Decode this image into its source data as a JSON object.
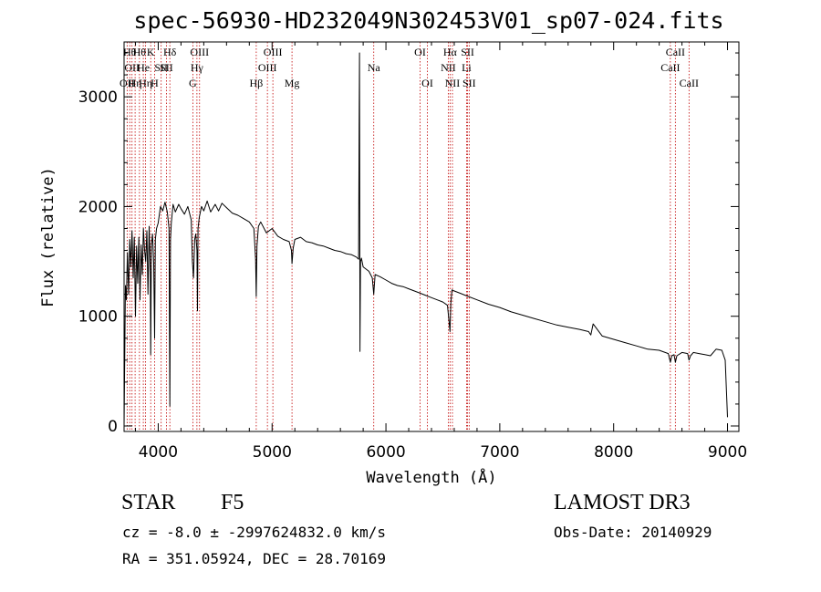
{
  "title": "spec-56930-HD232049N302453V01_sp07-024.fits",
  "info": {
    "object_type": "STAR",
    "spectral_class": "F5",
    "survey": "LAMOST DR3",
    "velocity": "cz = -8.0 ± -2997624832.0 km/s",
    "obs_date": "Obs-Date: 20140929",
    "coords": "RA = 351.05924, DEC =  28.70169"
  },
  "chart_data": {
    "type": "line",
    "title": "spec-56930-HD232049N302453V01_sp07-024.fits",
    "xlabel": "Wavelength (Å)",
    "ylabel": "Flux (relative)",
    "xlim": [
      3700,
      9100
    ],
    "ylim": [
      -50,
      3500
    ],
    "xticks": [
      4000,
      5000,
      6000,
      7000,
      8000,
      9000
    ],
    "yticks": [
      0,
      1000,
      2000,
      3000
    ],
    "series": [
      {
        "name": "flux",
        "x": [
          3700,
          3705,
          3712,
          3720,
          3730,
          3740,
          3750,
          3760,
          3770,
          3780,
          3790,
          3800,
          3810,
          3820,
          3830,
          3840,
          3850,
          3860,
          3870,
          3880,
          3890,
          3900,
          3910,
          3920,
          3930,
          3934,
          3940,
          3950,
          3960,
          3968,
          3975,
          3985,
          4000,
          4020,
          4040,
          4060,
          4080,
          4095,
          4102,
          4108,
          4115,
          4130,
          4150,
          4180,
          4200,
          4230,
          4260,
          4290,
          4300,
          4310,
          4320,
          4330,
          4340,
          4345,
          4350,
          4360,
          4380,
          4400,
          4430,
          4460,
          4500,
          4530,
          4560,
          4600,
          4650,
          4700,
          4750,
          4800,
          4840,
          4855,
          4861,
          4867,
          4880,
          4900,
          4950,
          5000,
          5050,
          5100,
          5150,
          5170,
          5175,
          5185,
          5200,
          5250,
          5300,
          5350,
          5400,
          5450,
          5500,
          5550,
          5600,
          5650,
          5700,
          5740,
          5760,
          5765,
          5768,
          5772,
          5777,
          5785,
          5800,
          5850,
          5880,
          5893,
          5905,
          5950,
          6000,
          6050,
          6100,
          6150,
          6200,
          6250,
          6300,
          6350,
          6400,
          6450,
          6500,
          6540,
          6555,
          6563,
          6570,
          6580,
          6600,
          6650,
          6700,
          6800,
          6900,
          7000,
          7100,
          7200,
          7300,
          7400,
          7500,
          7600,
          7700,
          7780,
          7800,
          7820,
          7900,
          8000,
          8100,
          8200,
          8300,
          8400,
          8480,
          8498,
          8510,
          8530,
          8542,
          8555,
          8600,
          8650,
          8662,
          8675,
          8700,
          8750,
          8800,
          8850,
          8900,
          8950,
          8980,
          9000
        ],
        "values": [
          0,
          520,
          1280,
          1150,
          1580,
          1200,
          1700,
          1450,
          1780,
          1350,
          1720,
          1000,
          1640,
          1300,
          1720,
          1150,
          1650,
          1380,
          1800,
          1600,
          1500,
          1780,
          1200,
          1820,
          1400,
          650,
          1650,
          1750,
          1480,
          800,
          1700,
          1800,
          1850,
          2000,
          1960,
          2040,
          1950,
          1800,
          180,
          1700,
          1850,
          2020,
          1950,
          2020,
          1980,
          1930,
          2000,
          1880,
          1500,
          1350,
          1700,
          1750,
          1600,
          1050,
          1800,
          1900,
          2000,
          1960,
          2050,
          1950,
          2020,
          1960,
          2030,
          1990,
          1940,
          1920,
          1890,
          1860,
          1800,
          1520,
          1180,
          1640,
          1820,
          1860,
          1760,
          1800,
          1730,
          1700,
          1680,
          1600,
          1480,
          1620,
          1700,
          1720,
          1680,
          1670,
          1650,
          1640,
          1620,
          1600,
          1590,
          1570,
          1560,
          1540,
          1520,
          2750,
          3400,
          680,
          1500,
          1530,
          1450,
          1410,
          1350,
          1200,
          1380,
          1360,
          1330,
          1300,
          1280,
          1270,
          1250,
          1230,
          1210,
          1190,
          1170,
          1150,
          1130,
          1100,
          950,
          860,
          1120,
          1240,
          1230,
          1210,
          1190,
          1150,
          1110,
          1080,
          1040,
          1010,
          980,
          950,
          920,
          900,
          880,
          860,
          830,
          930,
          820,
          790,
          760,
          730,
          700,
          690,
          660,
          580,
          640,
          650,
          580,
          640,
          670,
          660,
          600,
          640,
          670,
          660,
          650,
          640,
          700,
          690,
          600,
          80
        ]
      }
    ],
    "line_markers": [
      {
        "wl": 3727,
        "row": 2,
        "label": "OII"
      },
      {
        "wl": 3750,
        "row": 0,
        "label": "Hθ"
      },
      {
        "wl": 3770,
        "row": 1,
        "label": "OII"
      },
      {
        "wl": 3797,
        "row": 2,
        "label": "Hη"
      },
      {
        "wl": 3835,
        "row": 0,
        "label": "Hθ"
      },
      {
        "wl": 3869,
        "row": 1,
        "label": "He"
      },
      {
        "wl": 3889,
        "row": 2,
        "label": "Hη"
      },
      {
        "wl": 3934,
        "row": 0,
        "label": "K"
      },
      {
        "wl": 3968,
        "row": 2,
        "label": "H"
      },
      {
        "wl": 4026,
        "row": 1,
        "label": "SII"
      },
      {
        "wl": 4072,
        "row": 1,
        "label": "SII"
      },
      {
        "wl": 4102,
        "row": 0,
        "label": "Hδ"
      },
      {
        "wl": 4304,
        "row": 2,
        "label": "G"
      },
      {
        "wl": 4340,
        "row": 1,
        "label": "Hγ"
      },
      {
        "wl": 4363,
        "row": 0,
        "label": "OIII"
      },
      {
        "wl": 4861,
        "row": 2,
        "label": "Hβ"
      },
      {
        "wl": 4959,
        "row": 1,
        "label": "OIII"
      },
      {
        "wl": 5007,
        "row": 0,
        "label": "OIII"
      },
      {
        "wl": 5175,
        "row": 2,
        "label": "Mg"
      },
      {
        "wl": 5893,
        "row": 1,
        "label": "Na"
      },
      {
        "wl": 6300,
        "row": 0,
        "label": "OI"
      },
      {
        "wl": 6364,
        "row": 2,
        "label": "OI"
      },
      {
        "wl": 6548,
        "row": 1,
        "label": "NII"
      },
      {
        "wl": 6563,
        "row": 0,
        "label": "Hα"
      },
      {
        "wl": 6584,
        "row": 2,
        "label": "NII"
      },
      {
        "wl": 6708,
        "row": 1,
        "label": "Li"
      },
      {
        "wl": 6717,
        "row": 0,
        "label": "SII"
      },
      {
        "wl": 6731,
        "row": 2,
        "label": "SII"
      },
      {
        "wl": 8498,
        "row": 1,
        "label": "CaII"
      },
      {
        "wl": 8542,
        "row": 0,
        "label": "CaII"
      },
      {
        "wl": 8662,
        "row": 2,
        "label": "CaII"
      }
    ]
  }
}
